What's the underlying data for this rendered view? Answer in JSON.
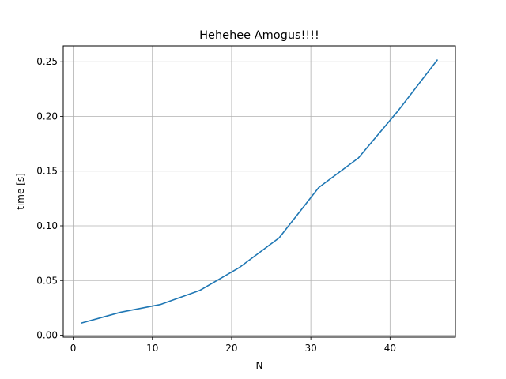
{
  "chart_data": {
    "type": "line",
    "title": "Hehehee Amogus!!!!",
    "xlabel": "N",
    "ylabel": "time [s]",
    "xlim": [
      -1.25,
      48.25
    ],
    "ylim": [
      -0.0018,
      0.2646
    ],
    "grid": true,
    "x_ticks": [
      0,
      10,
      20,
      30,
      40
    ],
    "x_tick_labels": [
      "0",
      "10",
      "20",
      "30",
      "40"
    ],
    "y_ticks": [
      0.0,
      0.05,
      0.1,
      0.15,
      0.2,
      0.25
    ],
    "y_tick_labels": [
      "0.00",
      "0.05",
      "0.10",
      "0.15",
      "0.20",
      "0.25"
    ],
    "series": [
      {
        "color": "#1f77b4",
        "x": [
          1,
          6,
          11,
          16,
          21,
          26,
          31,
          36,
          41,
          46
        ],
        "y": [
          0.011,
          0.021,
          0.028,
          0.041,
          0.062,
          0.089,
          0.135,
          0.162,
          0.205,
          0.252
        ]
      }
    ]
  }
}
